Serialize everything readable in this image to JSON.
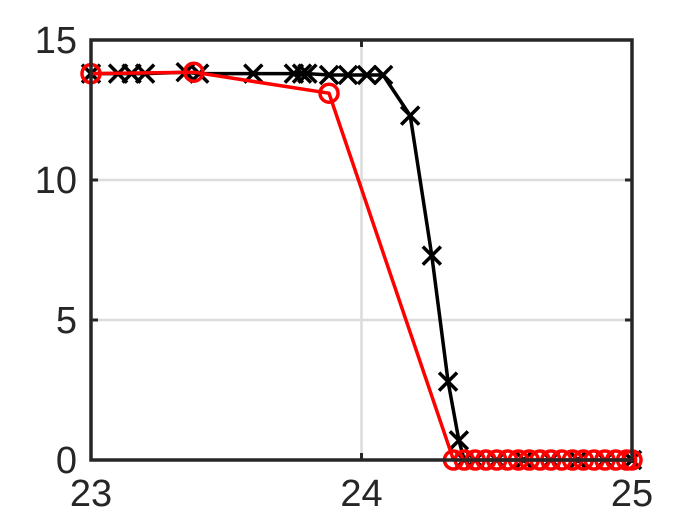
{
  "chart_data": {
    "type": "line",
    "title": "",
    "xlabel": "",
    "ylabel": "",
    "xlim": [
      23,
      25
    ],
    "ylim": [
      0,
      15
    ],
    "xticks": [
      23,
      24,
      25
    ],
    "yticks": [
      0,
      5,
      10,
      15
    ],
    "xtick_labels": [
      "23",
      "24",
      "25"
    ],
    "ytick_labels": [
      "0",
      "5",
      "10",
      "15"
    ],
    "grid": true,
    "legend": "none",
    "series": [
      {
        "color": "#000000",
        "marker": "x",
        "x": [
          23.0,
          23.1,
          23.15,
          23.2,
          23.35,
          23.4,
          23.6,
          23.75,
          23.78,
          23.8,
          23.88,
          23.95,
          24.02,
          24.08,
          24.18,
          24.26,
          24.32,
          24.36,
          24.38,
          24.42,
          24.5,
          24.6,
          24.7,
          24.8,
          24.9,
          25.0
        ],
        "y": [
          13.8,
          13.8,
          13.8,
          13.8,
          13.85,
          13.8,
          13.8,
          13.8,
          13.8,
          13.8,
          13.75,
          13.75,
          13.75,
          13.75,
          12.3,
          7.3,
          2.8,
          0.7,
          0.0,
          0.0,
          0.0,
          0.0,
          0.0,
          0.0,
          0.0,
          0.0
        ]
      },
      {
        "color": "#ff0000",
        "marker": "o",
        "x": [
          23.0,
          23.38,
          23.88,
          24.34,
          24.38,
          24.42,
          24.46,
          24.5,
          24.54,
          24.58,
          24.62,
          24.66,
          24.7,
          24.74,
          24.78,
          24.82,
          24.86,
          24.9,
          24.94,
          24.98,
          25.0
        ],
        "y": [
          13.8,
          13.85,
          13.1,
          0.0,
          0.0,
          0.0,
          0.0,
          0.0,
          0.0,
          0.0,
          0.0,
          0.0,
          0.0,
          0.0,
          0.0,
          0.0,
          0.0,
          0.0,
          0.0,
          0.0,
          0.0
        ]
      }
    ],
    "colors": {
      "grid": "#dcdcdc",
      "axis": "#262626"
    }
  }
}
